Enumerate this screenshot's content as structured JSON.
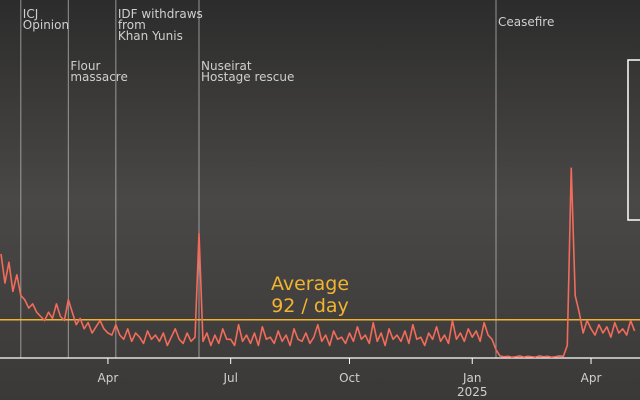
{
  "chart_data": {
    "type": "line",
    "categories": [
      null,
      null,
      null,
      null,
      null,
      null,
      null,
      null,
      null,
      null,
      null,
      null,
      null,
      null,
      null,
      null,
      null,
      null,
      null,
      null,
      null,
      null,
      null,
      null,
      null,
      null,
      null,
      "Apr",
      null,
      null,
      null,
      null,
      null,
      null,
      null,
      null,
      null,
      null,
      null,
      null,
      null,
      null,
      null,
      null,
      null,
      null,
      null,
      null,
      null,
      null,
      null,
      null,
      null,
      null,
      null,
      null,
      null,
      null,
      "Jul",
      null,
      null,
      null,
      null,
      null,
      null,
      null,
      null,
      null,
      null,
      null,
      null,
      null,
      null,
      null,
      null,
      null,
      null,
      null,
      null,
      null,
      null,
      null,
      null,
      null,
      null,
      null,
      null,
      null,
      "Oct",
      null,
      null,
      null,
      null,
      null,
      null,
      null,
      null,
      null,
      null,
      null,
      null,
      null,
      null,
      null,
      null,
      null,
      null,
      null,
      null,
      null,
      null,
      null,
      null,
      null,
      null,
      null,
      null,
      null,
      null,
      "Jan\n2025",
      null,
      null,
      null,
      null,
      null,
      null,
      null,
      null,
      null,
      null,
      null,
      null,
      null,
      null,
      null,
      null,
      null,
      null,
      null,
      null,
      null,
      null,
      null,
      null,
      null,
      null,
      null,
      null,
      null,
      "Apr",
      null,
      null,
      null,
      null,
      null,
      null,
      null,
      null,
      null,
      null,
      null
    ],
    "event_labels": [
      null,
      null,
      null,
      null,
      null,
      "ICJ\nOpinion",
      null,
      null,
      null,
      null,
      null,
      null,
      null,
      null,
      null,
      null,
      null,
      "Flour\nmassacre",
      null,
      null,
      null,
      null,
      null,
      null,
      null,
      null,
      null,
      null,
      null,
      "IDF withdraws\nfrom\nKhan Yunis",
      null,
      null,
      null,
      null,
      null,
      null,
      null,
      null,
      null,
      null,
      null,
      null,
      null,
      null,
      null,
      null,
      null,
      null,
      null,
      null,
      "Nuseirat\nHostage rescue",
      null,
      null,
      null,
      null,
      null,
      null,
      null,
      null,
      null,
      null,
      null,
      null,
      null,
      null,
      null,
      null,
      null,
      null,
      null,
      null,
      null,
      null,
      null,
      null,
      null,
      null,
      null,
      null,
      null,
      null,
      null,
      null,
      null,
      null,
      null,
      null,
      null,
      null,
      null,
      null,
      null,
      null,
      null,
      null,
      null,
      null,
      null,
      null,
      null,
      null,
      null,
      null,
      null,
      null,
      null,
      null,
      null,
      null,
      null,
      null,
      null,
      null,
      null,
      null,
      null,
      null,
      null,
      null,
      null,
      null,
      null,
      null,
      null,
      null,
      "Ceasefire",
      null,
      null,
      null,
      null,
      null,
      null,
      null,
      null,
      null,
      null,
      null,
      null,
      null,
      null,
      null,
      null,
      null,
      null,
      null,
      null,
      null,
      null,
      null,
      null,
      null,
      null,
      null,
      null,
      null,
      null,
      null,
      null,
      null,
      null,
      null
    ],
    "values": [
      250,
      180,
      230,
      160,
      200,
      150,
      140,
      120,
      130,
      110,
      100,
      90,
      110,
      95,
      130,
      100,
      90,
      140,
      110,
      80,
      95,
      70,
      85,
      60,
      75,
      90,
      70,
      60,
      55,
      80,
      55,
      45,
      70,
      40,
      60,
      50,
      35,
      65,
      45,
      55,
      40,
      60,
      30,
      50,
      70,
      45,
      35,
      60,
      40,
      50,
      300,
      40,
      60,
      30,
      55,
      35,
      70,
      45,
      45,
      30,
      80,
      40,
      55,
      35,
      60,
      30,
      75,
      45,
      50,
      35,
      65,
      40,
      55,
      30,
      70,
      45,
      40,
      60,
      35,
      50,
      80,
      40,
      55,
      30,
      65,
      45,
      50,
      35,
      60,
      40,
      75,
      45,
      55,
      35,
      85,
      40,
      60,
      30,
      70,
      45,
      55,
      40,
      65,
      35,
      80,
      45,
      50,
      30,
      60,
      45,
      75,
      40,
      55,
      35,
      90,
      45,
      60,
      40,
      70,
      50,
      65,
      40,
      85,
      55,
      45,
      20,
      5,
      3,
      4,
      2,
      3,
      5,
      2,
      4,
      3,
      2,
      5,
      3,
      4,
      2,
      3,
      5,
      4,
      30,
      456,
      150,
      110,
      60,
      90,
      70,
      55,
      80,
      60,
      75,
      50,
      85,
      60,
      70,
      55,
      90,
      65
    ],
    "color": "#f26b5b",
    "ylim": [
      0,
      860
    ],
    "average": {
      "value": 92,
      "label": "Average\n92 / day"
    },
    "average_color": "#f2b430"
  }
}
